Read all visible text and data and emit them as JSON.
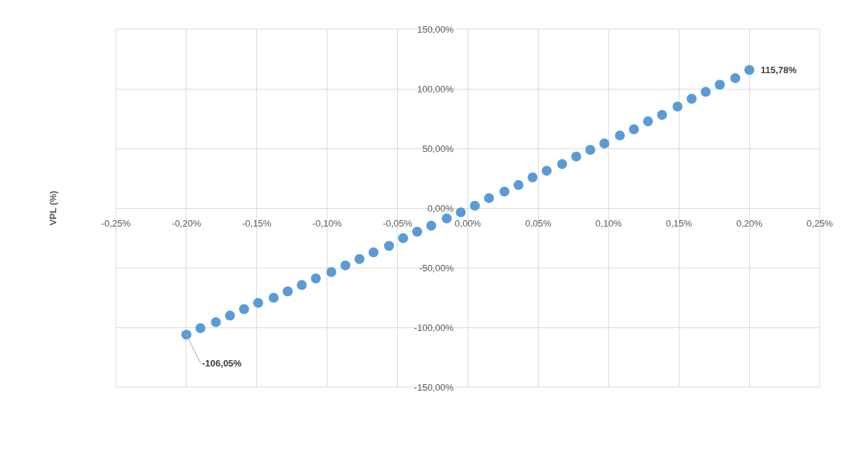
{
  "chart_data": {
    "type": "scatter",
    "ylabel": "VPL (%)",
    "x": [
      -0.2,
      -0.19,
      -0.179,
      -0.169,
      -0.159,
      -0.149,
      -0.138,
      -0.128,
      -0.118,
      -0.108,
      -0.097,
      -0.087,
      -0.077,
      -0.067,
      -0.056,
      -0.046,
      -0.036,
      -0.026,
      -0.015,
      -0.005,
      0.005,
      0.015,
      0.026,
      0.036,
      0.046,
      0.056,
      0.067,
      0.077,
      0.087,
      0.097,
      0.108,
      0.118,
      0.128,
      0.138,
      0.149,
      0.159,
      0.169,
      0.179,
      0.19,
      0.2
    ],
    "series": [
      {
        "color": "#5b9bd5",
        "values": [
          -106.05,
          -100.6,
          -95.6,
          -90.1,
          -84.7,
          -79.4,
          -75.2,
          -69.8,
          -64.5,
          -58.9,
          -53.6,
          -48.0,
          -42.7,
          -37.1,
          -31.7,
          -25.2,
          -19.8,
          -14.7,
          -8.7,
          -3.5,
          2.0,
          8.4,
          13.9,
          19.3,
          25.7,
          31.3,
          36.9,
          43.2,
          48.8,
          54.2,
          60.8,
          66.1,
          72.7,
          78.1,
          85.1,
          91.7,
          97.4,
          103.4,
          108.9,
          115.78
        ],
        "value_labels": [
          "-106,05%",
          null,
          null,
          null,
          null,
          null,
          null,
          null,
          null,
          null,
          null,
          null,
          null,
          null,
          null,
          null,
          null,
          null,
          null,
          null,
          null,
          null,
          null,
          null,
          null,
          null,
          null,
          null,
          null,
          null,
          null,
          null,
          null,
          null,
          null,
          null,
          null,
          null,
          null,
          "115,78%"
        ]
      }
    ],
    "xlim": [
      -0.25,
      0.25
    ],
    "xticks": [
      {
        "value": -0.25,
        "label": "-0,25%"
      },
      {
        "value": -0.2,
        "label": "-0,20%"
      },
      {
        "value": -0.15,
        "label": "-0,15%"
      },
      {
        "value": -0.1,
        "label": "-0,10%"
      },
      {
        "value": -0.05,
        "label": "-0,05%"
      },
      {
        "value": 0,
        "label": "0,00%"
      },
      {
        "value": 0.05,
        "label": "0,05%"
      },
      {
        "value": 0.1,
        "label": "0,10%"
      },
      {
        "value": 0.15,
        "label": "0,15%"
      },
      {
        "value": 0.2,
        "label": "0,20%"
      },
      {
        "value": 0.25,
        "label": "0,25%"
      }
    ],
    "ylim": [
      -150,
      150
    ],
    "yticks": [
      {
        "value": -150,
        "label": "-150,00%"
      },
      {
        "value": -100,
        "label": "-100,00%"
      },
      {
        "value": -50,
        "label": "-50,00%"
      },
      {
        "value": 0,
        "label": "0,00%"
      },
      {
        "value": 50,
        "label": "50,00%"
      },
      {
        "value": 100,
        "label": "100,00%"
      },
      {
        "value": 150,
        "label": "150,00%"
      }
    ],
    "grid": true,
    "marker": "circle"
  }
}
